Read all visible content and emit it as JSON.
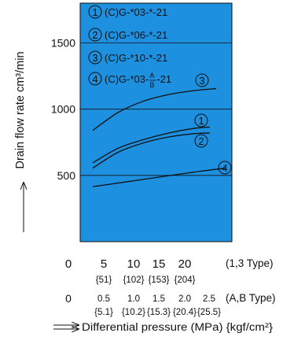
{
  "chart_data": {
    "type": "line",
    "background_color": "#1e90e0",
    "grid": true,
    "ylabel": "Drain flow rate  cm³/min",
    "xlabel": "Differential pressure (MPa) {kgf/cm²}",
    "ylim": [
      0,
      1800
    ],
    "xlim": [
      0,
      24
    ],
    "y_ticks": [
      500,
      1000,
      1500
    ],
    "x_ticks": [
      {
        "x": 5,
        "lbl13": "5",
        "kgf13": "{51}",
        "lblAB": "0.5",
        "kgfAB": "{5.1}"
      },
      {
        "x": 10,
        "lbl13": "10",
        "kgf13": "{102}",
        "lblAB": "1.0",
        "kgfAB": "{10.2}"
      },
      {
        "x": 15,
        "lbl13": "15",
        "kgf13": "{153}",
        "lblAB": "1.5",
        "kgfAB": "{15.3}"
      },
      {
        "x": 20,
        "lbl13": "20",
        "kgf13": "{204}",
        "lblAB": "2.0",
        "kgfAB": "{20.4}"
      },
      {
        "x": 25,
        "lbl13": "",
        "kgf13": "",
        "lblAB": "2.5",
        "kgfAB": "{25.5}"
      }
    ],
    "x_zero_13": "0",
    "x_zero_AB": "0",
    "type_13": "(1,3 Type)",
    "type_AB": "(A,B Type)",
    "series": [
      {
        "marker": "1",
        "name": "(C)G-*03-*-21",
        "x": [
          2,
          6,
          10,
          14,
          18,
          20.5
        ],
        "y": [
          595,
          705,
          770,
          820,
          855,
          865
        ]
      },
      {
        "marker": "2",
        "name": "(C)G-*06-*-21",
        "x": [
          2,
          6,
          10,
          14,
          18,
          20.5
        ],
        "y": [
          555,
          675,
          745,
          790,
          815,
          820
        ]
      },
      {
        "marker": "3",
        "name": "(C)G-*10-*-21",
        "x": [
          2,
          6,
          10,
          14,
          18,
          21.5
        ],
        "y": [
          840,
          975,
          1060,
          1110,
          1140,
          1155
        ]
      },
      {
        "marker": "4",
        "name": "(C)G-*03-",
        "name_sup": "A",
        "name_sub": "B",
        "name_tail": "-21",
        "x": [
          2,
          10,
          18,
          23
        ],
        "y": [
          415,
          470,
          525,
          555
        ]
      }
    ]
  }
}
